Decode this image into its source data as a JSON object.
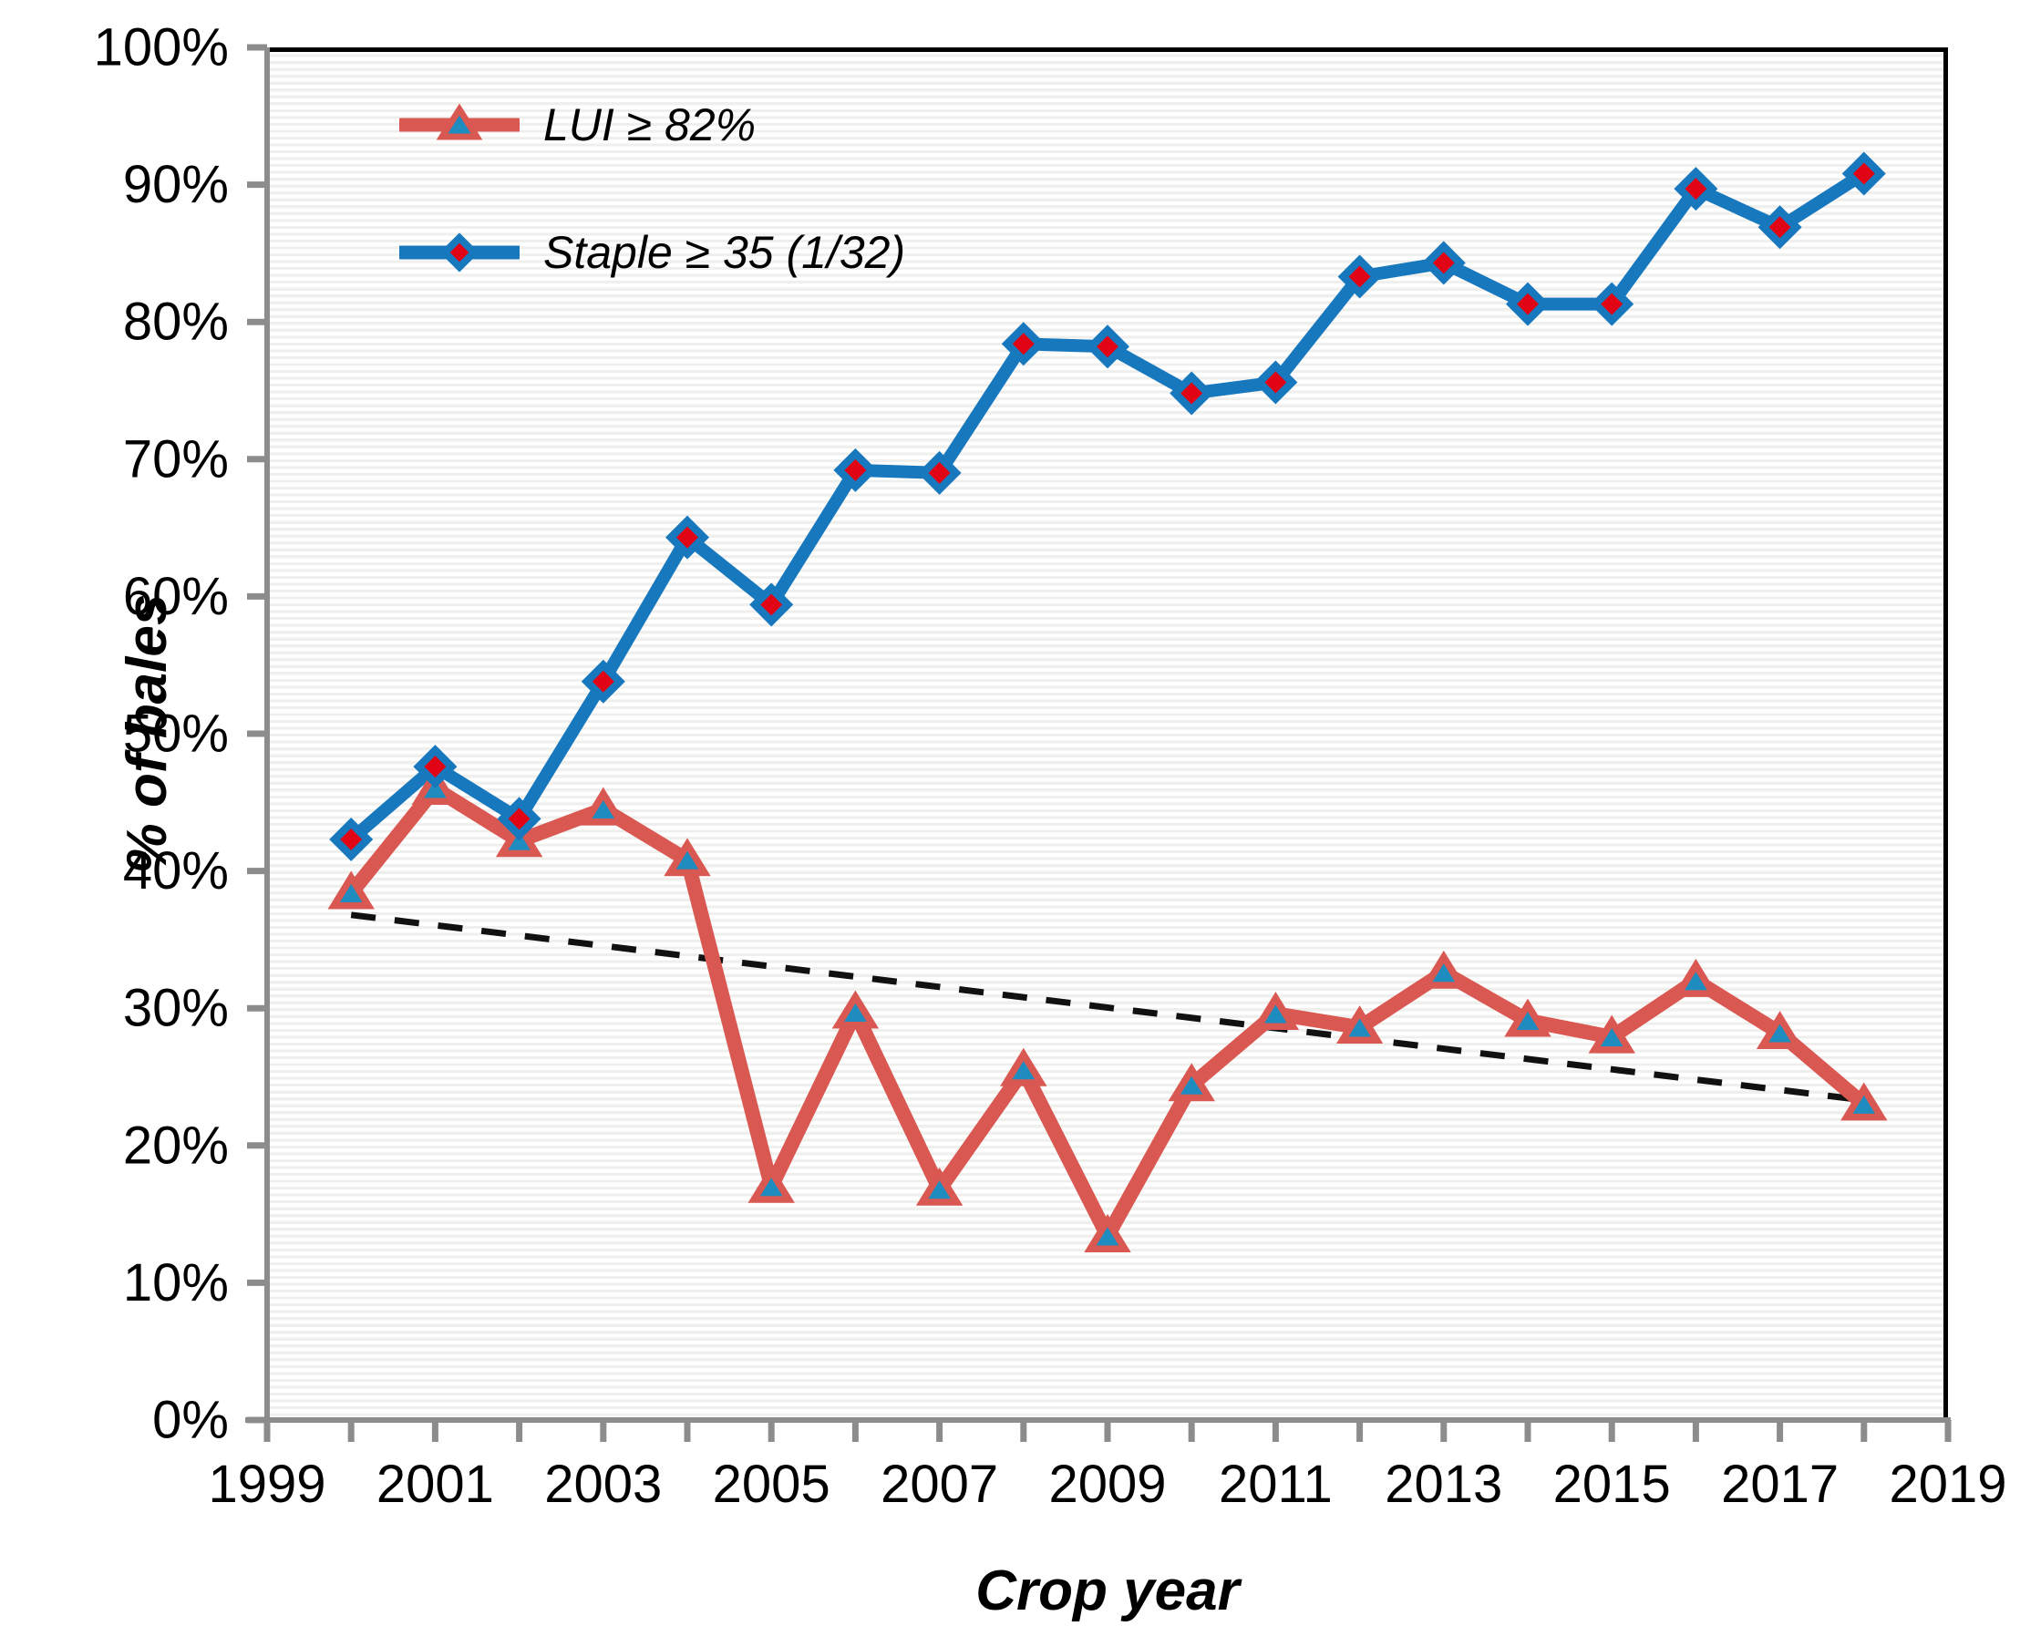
{
  "axes": {
    "x_title": "Crop year",
    "y_title": "% of bales",
    "x_tick_labels": [
      "1999",
      "2001",
      "2003",
      "2005",
      "2007",
      "2009",
      "2011",
      "2013",
      "2015",
      "2017",
      "2019"
    ],
    "y_tick_labels": [
      "0%",
      "10%",
      "20%",
      "30%",
      "40%",
      "50%",
      "60%",
      "70%",
      "80%",
      "90%",
      "100%"
    ]
  },
  "legend": {
    "position": "top-left",
    "items": [
      {
        "label": "LUI ≥ 82%",
        "marker": "triangle",
        "line_color": "#da5852",
        "marker_fill": "#1e8cbe",
        "marker_stroke": "#da5852"
      },
      {
        "label": "Staple ≥ 35 (1/32)",
        "marker": "diamond",
        "line_color": "#1878be",
        "marker_fill": "#e00414",
        "marker_stroke": "#1878be"
      }
    ]
  },
  "chart_data": {
    "type": "line",
    "x": [
      2000,
      2001,
      2002,
      2003,
      2004,
      2005,
      2006,
      2007,
      2008,
      2009,
      2010,
      2011,
      2012,
      2013,
      2014,
      2015,
      2016,
      2017,
      2018
    ],
    "series": [
      {
        "name": "Staple ≥ 35 (1/32)",
        "marker": "diamond",
        "color": "#1878be",
        "marker_fill": "#e00414",
        "values": [
          42.3,
          47.6,
          43.8,
          53.8,
          64.3,
          59.4,
          69.2,
          69.0,
          78.4,
          78.2,
          74.8,
          75.6,
          83.3,
          84.3,
          81.3,
          81.3,
          89.7,
          86.9,
          90.8
        ]
      },
      {
        "name": "LUI ≥ 82%",
        "marker": "triangle",
        "color": "#da5852",
        "marker_fill": "#1e8cbe",
        "values": [
          38.4,
          46.0,
          42.2,
          44.5,
          40.8,
          17.0,
          29.7,
          16.8,
          25.5,
          13.4,
          24.4,
          29.6,
          28.6,
          32.6,
          29.1,
          27.9,
          32.0,
          28.2,
          23.0
        ]
      }
    ],
    "trendline": {
      "style": "dashed",
      "color": "#111111",
      "x": [
        2000,
        2018
      ],
      "y": [
        36.8,
        23.3
      ],
      "applies_to": "LUI ≥ 82%"
    },
    "xlabel": "Crop year",
    "ylabel": "% of bales",
    "xlim": [
      1999,
      2019
    ],
    "ylim": [
      0,
      100
    ],
    "x_tick_step": 1,
    "x_label_step": 2,
    "y_tick_step": 10,
    "grid": "fine horizontal stripes",
    "legend_position": "top-left"
  },
  "colors": {
    "axis": "#8c8c8c",
    "frame": "#000000",
    "stripe": "#efefee",
    "text": "#000000",
    "background": "#ffffff"
  }
}
